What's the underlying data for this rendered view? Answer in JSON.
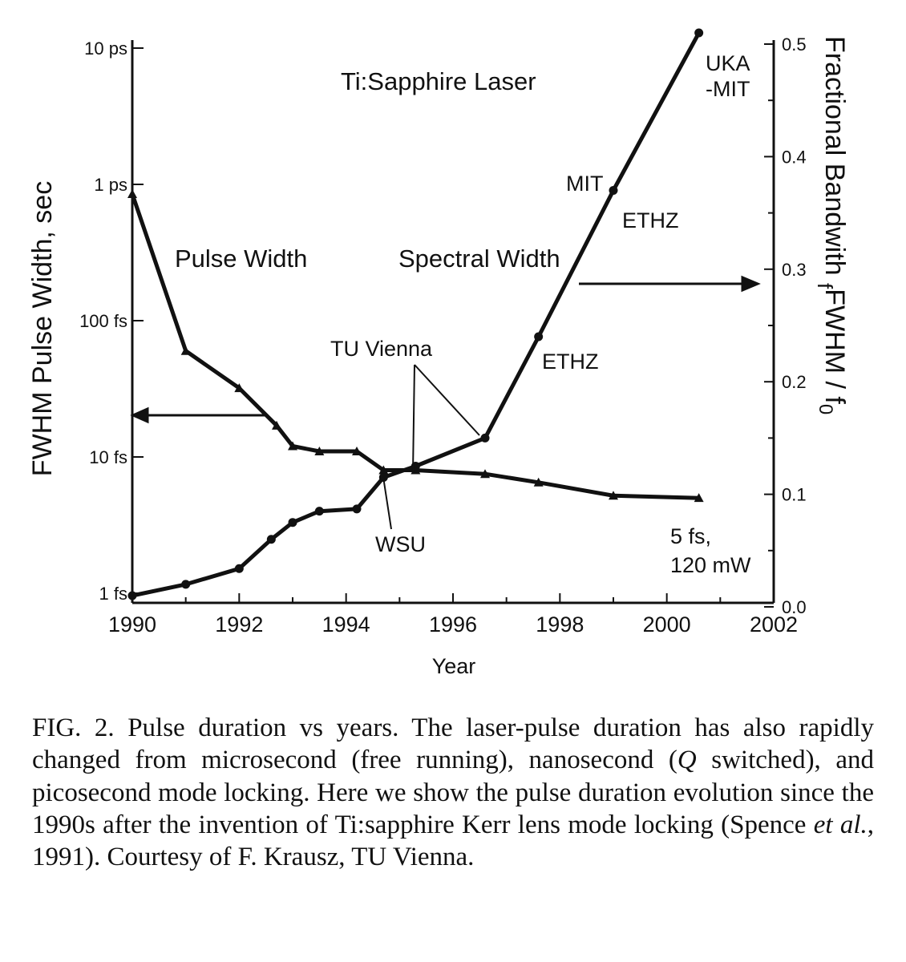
{
  "chart_data": {
    "type": "line",
    "title": "Ti:Sapphire Laser",
    "xlabel": "Year",
    "ylabel_left": "FWHM Pulse Width, sec",
    "ylabel_right_main": "Fractional Bandwith ",
    "ylabel_right_sub1": "FWHM",
    "ylabel_right_sep": " / ",
    "ylabel_right_sub2": "0",
    "ylabel_right_f1": "f",
    "ylabel_right_f2": "f",
    "xlim": [
      1990,
      2002
    ],
    "ylim_left_seconds": [
      1e-15,
      1e-11
    ],
    "ylim_right": [
      0.0,
      0.5
    ],
    "y_left_scale": "log",
    "x_ticks": [
      "1990",
      "1992",
      "1994",
      "1996",
      "1998",
      "2000",
      "2002"
    ],
    "y_left_ticks": [
      "1 fs",
      "10 fs",
      "100 fs",
      "1 ps",
      "10 ps"
    ],
    "y_right_ticks": [
      "0.0",
      "0.1",
      "0.2",
      "0.3",
      "0.4",
      "0.5"
    ],
    "grid": false,
    "series": [
      {
        "name": "Pulse Width",
        "axis": "left",
        "unit": "fs",
        "points": [
          {
            "x": 1990.0,
            "y": 850
          },
          {
            "x": 1991.0,
            "y": 60
          },
          {
            "x": 1992.0,
            "y": 32
          },
          {
            "x": 1992.7,
            "y": 17
          },
          {
            "x": 1993.0,
            "y": 12
          },
          {
            "x": 1993.5,
            "y": 11
          },
          {
            "x": 1994.2,
            "y": 11
          },
          {
            "x": 1994.7,
            "y": 8
          },
          {
            "x": 1995.3,
            "y": 8
          },
          {
            "x": 1996.6,
            "y": 7.5
          },
          {
            "x": 1997.6,
            "y": 6.5
          },
          {
            "x": 1999.0,
            "y": 5.2
          },
          {
            "x": 2000.6,
            "y": 5
          }
        ]
      },
      {
        "name": "Spectral Width",
        "axis": "right",
        "points": [
          {
            "x": 1990.0,
            "y": 0.01
          },
          {
            "x": 1991.0,
            "y": 0.02
          },
          {
            "x": 1992.0,
            "y": 0.034
          },
          {
            "x": 1992.6,
            "y": 0.06
          },
          {
            "x": 1993.0,
            "y": 0.075
          },
          {
            "x": 1993.5,
            "y": 0.085
          },
          {
            "x": 1994.2,
            "y": 0.087
          },
          {
            "x": 1994.7,
            "y": 0.115
          },
          {
            "x": 1995.3,
            "y": 0.125
          },
          {
            "x": 1996.6,
            "y": 0.15
          },
          {
            "x": 1997.6,
            "y": 0.24
          },
          {
            "x": 1999.0,
            "y": 0.37
          },
          {
            "x": 2000.6,
            "y": 0.51
          }
        ]
      }
    ],
    "annotations": {
      "pulse_width": "Pulse Width",
      "spectral_width": "Spectral Width",
      "uka": "UKA",
      "mit_uka": "-MIT",
      "mit": "MIT",
      "ethz_upper": "ETHZ",
      "ethz_lower": "ETHZ",
      "tu_vienna": "TU Vienna",
      "wsu": "WSU",
      "final_1": "5 fs,",
      "final_2": "120 mW"
    }
  },
  "caption": {
    "fig_label": "FIG. 2.",
    "part1": " Pulse duration vs years. The laser-pulse duration has also rapidly changed from microsecond (free running), nanosecond (",
    "q": "Q",
    "part2": " switched), and picosecond mode locking. Here we show the pulse duration evolution since the 1990s after the invention of Ti:sapphire Kerr lens mode locking (Spence ",
    "etal": "et al.",
    "part3": ", 1991). Courtesy of F. Krausz, TU Vienna."
  }
}
